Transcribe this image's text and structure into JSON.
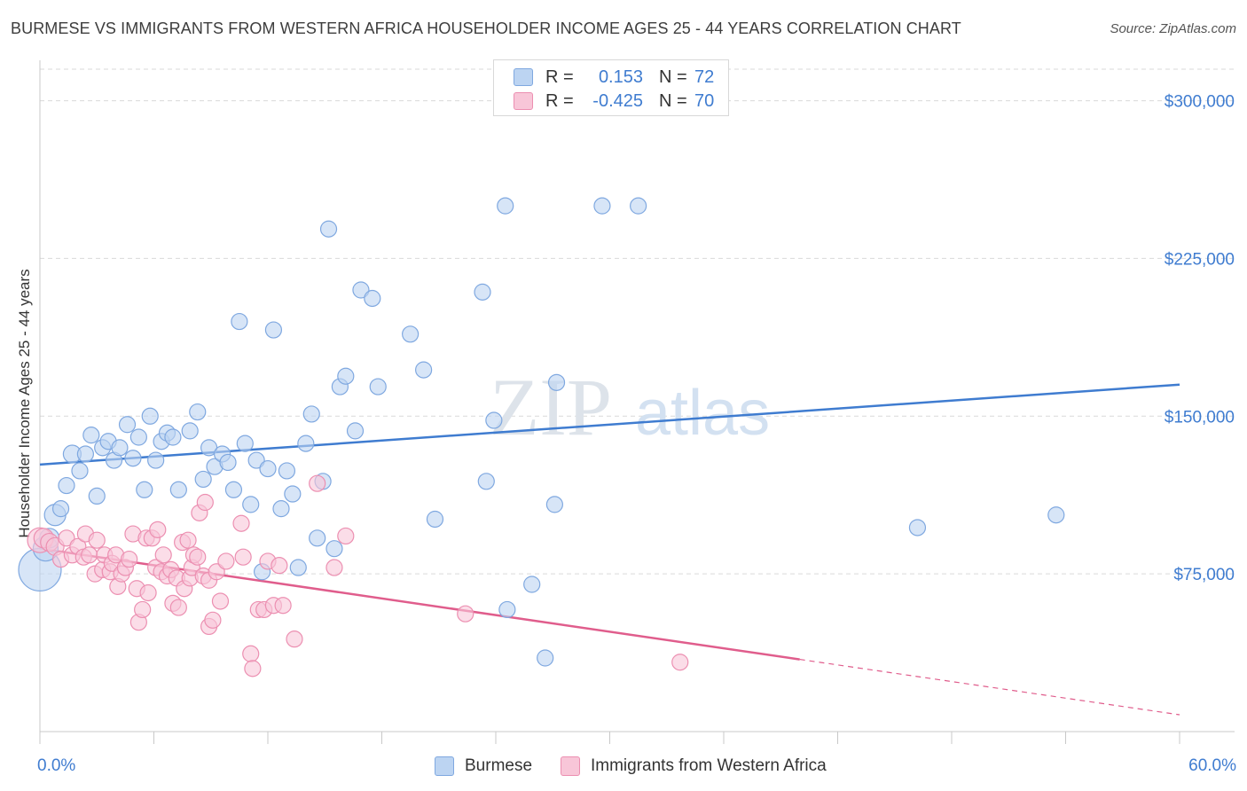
{
  "title": "BURMESE VS IMMIGRANTS FROM WESTERN AFRICA HOUSEHOLDER INCOME AGES 25 - 44 YEARS CORRELATION CHART",
  "source": "Source: ZipAtlas.com",
  "watermark": {
    "zip": "ZIP",
    "atlas": "atlas"
  },
  "legend": {
    "rows": [
      {
        "r_key": "R =",
        "r_value": "0.153",
        "n_key": "N =",
        "n_value": "72"
      },
      {
        "r_key": "R =",
        "r_value": "-0.425",
        "n_key": "N =",
        "n_value": "70"
      }
    ]
  },
  "colors": {
    "blue": "#3f7cd0",
    "blue_fill": "#bcd4f2",
    "blue_stroke": "#7fa8e0",
    "pink": "#e05d8c",
    "pink_fill": "#f8c6d8",
    "pink_stroke": "#ec8fb1",
    "grid": "#d9d9d9",
    "axis_text": "#3f7cd0"
  },
  "chart_data": {
    "type": "scatter",
    "title": "BURMESE VS IMMIGRANTS FROM WESTERN AFRICA HOUSEHOLDER INCOME AGES 25 - 44 YEARS CORRELATION CHART",
    "xlabel": "",
    "ylabel": "Householder Income Ages 25 - 44 years",
    "xlim": [
      0,
      60
    ],
    "ylim": [
      0,
      315000
    ],
    "x_tick_labels": [
      "0.0%",
      "60.0%"
    ],
    "y_ticks": [
      75000,
      150000,
      225000,
      300000
    ],
    "y_tick_labels": [
      "$75,000",
      "$150,000",
      "$225,000",
      "$300,000"
    ],
    "grid": true,
    "legend_position": "bottom",
    "series": [
      {
        "name": "Burmese",
        "color": "#3f7cd0",
        "R": 0.153,
        "N": 72,
        "trend": {
          "x": [
            0,
            60
          ],
          "y": [
            127000,
            165000
          ],
          "solid_until": 60
        },
        "points": [
          [
            0.0,
            77000,
            24
          ],
          [
            0.3,
            87000,
            14
          ],
          [
            0.5,
            92000,
            11
          ],
          [
            0.8,
            103000,
            12
          ],
          [
            1.1,
            106000,
            9
          ],
          [
            1.4,
            117000,
            9
          ],
          [
            1.7,
            132000,
            10
          ],
          [
            2.1,
            124000,
            9
          ],
          [
            2.4,
            132000,
            9
          ],
          [
            2.7,
            141000,
            9
          ],
          [
            3.0,
            112000,
            9
          ],
          [
            3.3,
            135000,
            9
          ],
          [
            3.6,
            138000,
            9
          ],
          [
            3.9,
            129000,
            9
          ],
          [
            4.2,
            135000,
            9
          ],
          [
            4.6,
            146000,
            9
          ],
          [
            4.9,
            130000,
            9
          ],
          [
            5.2,
            140000,
            9
          ],
          [
            5.5,
            115000,
            9
          ],
          [
            5.8,
            150000,
            9
          ],
          [
            6.1,
            129000,
            9
          ],
          [
            6.4,
            138000,
            9
          ],
          [
            6.7,
            142000,
            9
          ],
          [
            7.0,
            140000,
            9
          ],
          [
            7.3,
            115000,
            9
          ],
          [
            7.9,
            143000,
            9
          ],
          [
            8.3,
            152000,
            9
          ],
          [
            8.6,
            120000,
            9
          ],
          [
            8.9,
            135000,
            9
          ],
          [
            9.2,
            126000,
            9
          ],
          [
            9.6,
            132000,
            9
          ],
          [
            9.9,
            128000,
            9
          ],
          [
            10.2,
            115000,
            9
          ],
          [
            10.5,
            195000,
            9
          ],
          [
            10.8,
            137000,
            9
          ],
          [
            11.1,
            108000,
            9
          ],
          [
            11.4,
            129000,
            9
          ],
          [
            11.7,
            76000,
            9
          ],
          [
            12.0,
            125000,
            9
          ],
          [
            12.3,
            191000,
            9
          ],
          [
            12.7,
            106000,
            9
          ],
          [
            13.0,
            124000,
            9
          ],
          [
            13.3,
            113000,
            9
          ],
          [
            13.6,
            78000,
            9
          ],
          [
            14.0,
            137000,
            9
          ],
          [
            14.3,
            151000,
            9
          ],
          [
            14.6,
            92000,
            9
          ],
          [
            14.9,
            119000,
            9
          ],
          [
            15.2,
            239000,
            9
          ],
          [
            15.5,
            87000,
            9
          ],
          [
            15.8,
            164000,
            9
          ],
          [
            16.1,
            169000,
            9
          ],
          [
            16.6,
            143000,
            9
          ],
          [
            16.9,
            210000,
            9
          ],
          [
            17.5,
            206000,
            9
          ],
          [
            17.8,
            164000,
            9
          ],
          [
            19.5,
            189000,
            9
          ],
          [
            20.2,
            172000,
            9
          ],
          [
            20.8,
            101000,
            9
          ],
          [
            23.3,
            209000,
            9
          ],
          [
            23.5,
            119000,
            9
          ],
          [
            23.9,
            148000,
            9
          ],
          [
            24.5,
            250000,
            9
          ],
          [
            24.6,
            58000,
            9
          ],
          [
            25.9,
            70000,
            9
          ],
          [
            26.6,
            35000,
            9
          ],
          [
            27.1,
            108000,
            9
          ],
          [
            27.2,
            166000,
            9
          ],
          [
            29.6,
            250000,
            9
          ],
          [
            31.5,
            250000,
            9
          ],
          [
            46.2,
            97000,
            9
          ],
          [
            53.5,
            103000,
            9
          ]
        ]
      },
      {
        "name": "Immigrants from Western Africa",
        "color": "#e05d8c",
        "R": -0.425,
        "N": 70,
        "trend": {
          "x": [
            0,
            60
          ],
          "y": [
            87000,
            8000
          ],
          "solid_until": 40
        },
        "points": [
          [
            0.0,
            91000,
            14
          ],
          [
            0.2,
            92000,
            11
          ],
          [
            0.5,
            90000,
            10
          ],
          [
            0.8,
            88000,
            10
          ],
          [
            1.1,
            82000,
            9
          ],
          [
            1.4,
            92000,
            9
          ],
          [
            1.7,
            84000,
            9
          ],
          [
            2.0,
            88000,
            9
          ],
          [
            2.3,
            83000,
            9
          ],
          [
            2.4,
            94000,
            9
          ],
          [
            2.6,
            84000,
            9
          ],
          [
            2.9,
            75000,
            9
          ],
          [
            3.0,
            91000,
            9
          ],
          [
            3.3,
            77000,
            9
          ],
          [
            3.4,
            84000,
            9
          ],
          [
            3.7,
            76000,
            9
          ],
          [
            3.8,
            80000,
            9
          ],
          [
            4.0,
            84000,
            9
          ],
          [
            4.1,
            69000,
            9
          ],
          [
            4.3,
            75000,
            9
          ],
          [
            4.5,
            78000,
            9
          ],
          [
            4.7,
            82000,
            9
          ],
          [
            4.9,
            94000,
            9
          ],
          [
            5.1,
            68000,
            9
          ],
          [
            5.2,
            52000,
            9
          ],
          [
            5.4,
            58000,
            9
          ],
          [
            5.6,
            92000,
            9
          ],
          [
            5.7,
            66000,
            9
          ],
          [
            5.9,
            92000,
            9
          ],
          [
            6.1,
            78000,
            9
          ],
          [
            6.2,
            96000,
            9
          ],
          [
            6.4,
            76000,
            9
          ],
          [
            6.5,
            84000,
            9
          ],
          [
            6.7,
            74000,
            9
          ],
          [
            6.9,
            77000,
            9
          ],
          [
            7.0,
            61000,
            9
          ],
          [
            7.2,
            73000,
            9
          ],
          [
            7.3,
            59000,
            9
          ],
          [
            7.5,
            90000,
            9
          ],
          [
            7.6,
            68000,
            9
          ],
          [
            7.8,
            91000,
            9
          ],
          [
            7.9,
            73000,
            9
          ],
          [
            8.0,
            78000,
            9
          ],
          [
            8.1,
            84000,
            9
          ],
          [
            8.3,
            83000,
            9
          ],
          [
            8.4,
            104000,
            9
          ],
          [
            8.6,
            74000,
            9
          ],
          [
            8.7,
            109000,
            9
          ],
          [
            8.9,
            72000,
            9
          ],
          [
            8.9,
            50000,
            9
          ],
          [
            9.1,
            53000,
            9
          ],
          [
            9.3,
            76000,
            9
          ],
          [
            9.5,
            62000,
            9
          ],
          [
            9.8,
            81000,
            9
          ],
          [
            10.6,
            99000,
            9
          ],
          [
            10.7,
            83000,
            9
          ],
          [
            11.1,
            37000,
            9
          ],
          [
            11.2,
            30000,
            9
          ],
          [
            11.5,
            58000,
            9
          ],
          [
            11.8,
            58000,
            9
          ],
          [
            12.0,
            81000,
            9
          ],
          [
            12.3,
            60000,
            9
          ],
          [
            12.6,
            79000,
            9
          ],
          [
            12.8,
            60000,
            9
          ],
          [
            13.4,
            44000,
            9
          ],
          [
            14.6,
            118000,
            9
          ],
          [
            15.5,
            78000,
            9
          ],
          [
            16.1,
            93000,
            9
          ],
          [
            22.4,
            56000,
            9
          ],
          [
            33.7,
            33000,
            9
          ]
        ]
      }
    ]
  }
}
